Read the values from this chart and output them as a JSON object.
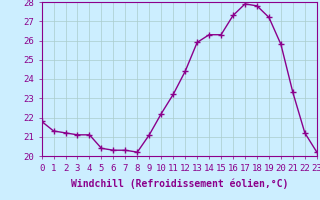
{
  "x": [
    0,
    1,
    2,
    3,
    4,
    5,
    6,
    7,
    8,
    9,
    10,
    11,
    12,
    13,
    14,
    15,
    16,
    17,
    18,
    19,
    20,
    21,
    22,
    23
  ],
  "y": [
    21.8,
    21.3,
    21.2,
    21.1,
    21.1,
    20.4,
    20.3,
    20.3,
    20.2,
    21.1,
    22.2,
    23.2,
    24.4,
    25.9,
    26.3,
    26.3,
    27.3,
    27.9,
    27.8,
    27.2,
    25.8,
    23.3,
    21.2,
    20.2
  ],
  "line_color": "#8b008b",
  "marker": "+",
  "marker_size": 4,
  "marker_linewidth": 1.0,
  "xlabel": "Windchill (Refroidissement éolien,°C)",
  "xlabel_fontsize": 7,
  "ylim": [
    20,
    28
  ],
  "xlim": [
    0,
    23
  ],
  "yticks": [
    20,
    21,
    22,
    23,
    24,
    25,
    26,
    27,
    28
  ],
  "xticks": [
    0,
    1,
    2,
    3,
    4,
    5,
    6,
    7,
    8,
    9,
    10,
    11,
    12,
    13,
    14,
    15,
    16,
    17,
    18,
    19,
    20,
    21,
    22,
    23
  ],
  "tick_fontsize": 6.5,
  "background_color": "#cceeff",
  "grid_color": "#aacccc",
  "line_width": 1.0,
  "spine_color": "#8b008b"
}
